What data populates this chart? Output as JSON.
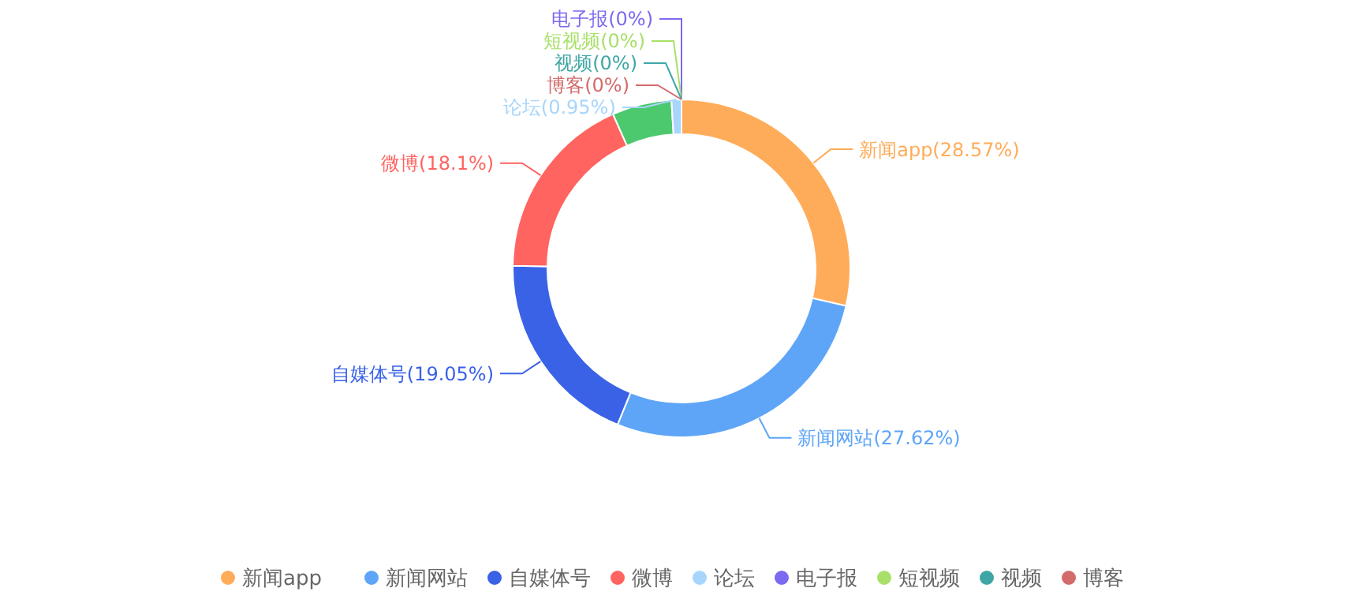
{
  "chart_data": {
    "type": "donut",
    "categories": [
      "新闻app",
      "新闻网站",
      "自媒体号",
      "微博",
      null,
      "论坛",
      "电子报",
      "短视频",
      "视频",
      "博客"
    ],
    "values": [
      28.57,
      27.62,
      19.05,
      18.1,
      5.71,
      0.95,
      0,
      0,
      0,
      0
    ],
    "colors": [
      "#ffac5a",
      "#5ea5f8",
      "#3a62e6",
      "#ff6461",
      "#4cc96f",
      "#a7d5fb",
      "#7b6af0",
      "#a9e06a",
      "#3fa6a6",
      "#d36b6b"
    ],
    "value_labels": [
      "(28.57%)",
      "(27.62%)",
      "(19.05%)",
      "(18.1%)",
      null,
      "(0.95%)",
      "(0%)",
      "(0%)",
      "(0%)",
      "(0%)"
    ],
    "legend": "bottom"
  }
}
